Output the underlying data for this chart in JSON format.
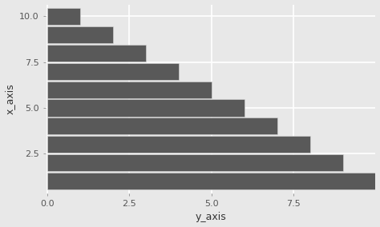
{
  "categories": [
    10,
    9,
    8,
    7,
    6,
    5,
    4,
    3,
    2,
    1
  ],
  "values": [
    1,
    2,
    3,
    4,
    5,
    6,
    7,
    8,
    9,
    10
  ],
  "bar_color": "#595959",
  "bar_edge_color": "#d8d8d8",
  "background_color": "#e8e8e8",
  "panel_background": "#e8e8e8",
  "grid_color": "#ffffff",
  "xlabel": "y_axis",
  "ylabel": "x_axis",
  "xlim": [
    -0.05,
    10.0
  ],
  "ylim": [
    0.35,
    10.65
  ],
  "xticks": [
    0.0,
    2.5,
    5.0,
    7.5
  ],
  "yticks": [
    2.5,
    5.0,
    7.5,
    10.0
  ],
  "bar_width": 0.92,
  "label_fontsize": 9,
  "tick_fontsize": 8
}
